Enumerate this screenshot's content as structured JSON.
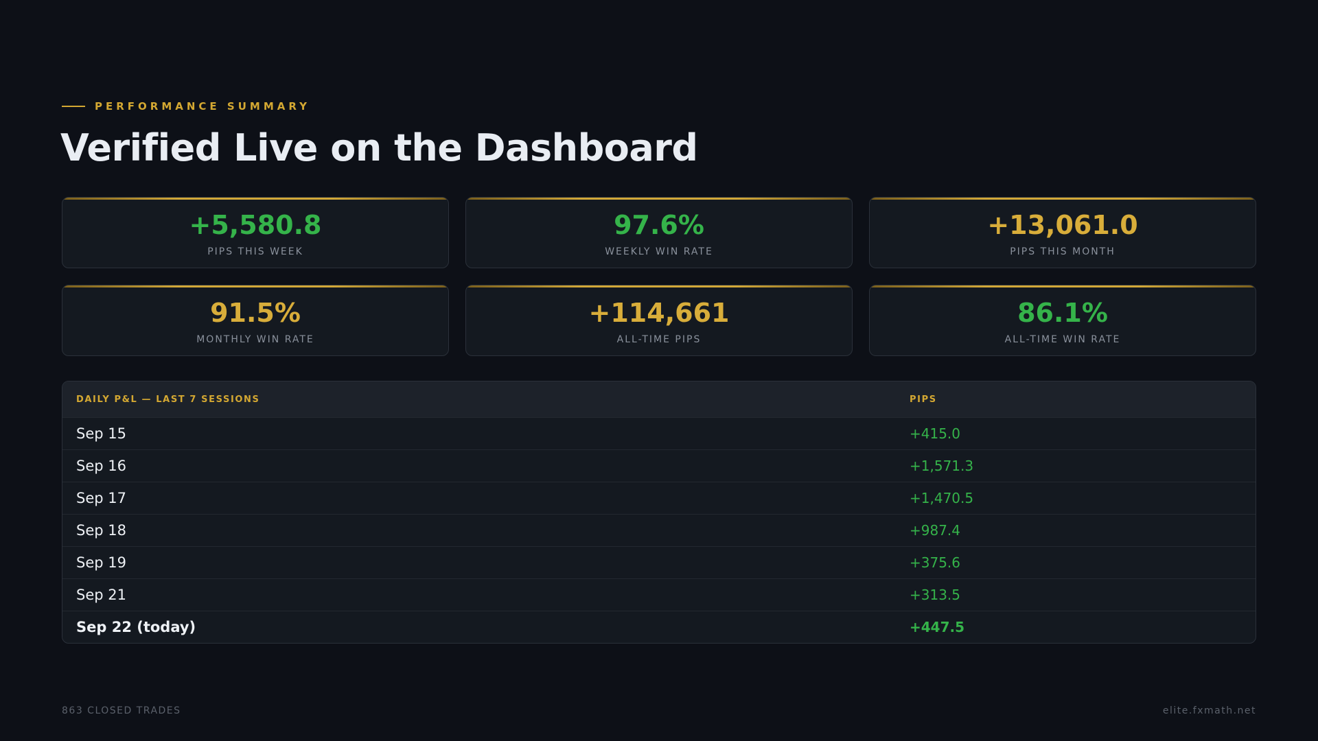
{
  "header": {
    "eyebrow": "PERFORMANCE SUMMARY",
    "title": "Verified Live on the Dashboard"
  },
  "stats": [
    {
      "value": "+5,580.8",
      "label": "PIPS THIS WEEK",
      "color": "#35b34a"
    },
    {
      "value": "97.6%",
      "label": "WEEKLY WIN RATE",
      "color": "#35b34a"
    },
    {
      "value": "+13,061.0",
      "label": "PIPS THIS MONTH",
      "color": "#d8ad3a"
    },
    {
      "value": "91.5%",
      "label": "MONTHLY WIN RATE",
      "color": "#d8ad3a"
    },
    {
      "value": "+114,661",
      "label": "ALL-TIME PIPS",
      "color": "#d8ad3a"
    },
    {
      "value": "86.1%",
      "label": "ALL-TIME WIN RATE",
      "color": "#35b34a"
    }
  ],
  "table": {
    "headers": [
      "DAILY P&L — LAST 7 SESSIONS",
      "PIPS"
    ],
    "rows": [
      {
        "date": "Sep 15",
        "pips": "+415.0"
      },
      {
        "date": "Sep 16",
        "pips": "+1,571.3"
      },
      {
        "date": "Sep 17",
        "pips": "+1,470.5"
      },
      {
        "date": "Sep 18",
        "pips": "+987.4"
      },
      {
        "date": "Sep 19",
        "pips": "+375.6"
      },
      {
        "date": "Sep 21",
        "pips": "+313.5"
      },
      {
        "date": "Sep 22 (today)",
        "pips": "+447.5"
      }
    ]
  },
  "footer": {
    "left": "863 CLOSED TRADES",
    "right": "elite.fxmath.net"
  },
  "colors": {
    "background": "#0d1017",
    "accent_gold": "#d4a832",
    "positive_green": "#35b34a"
  }
}
